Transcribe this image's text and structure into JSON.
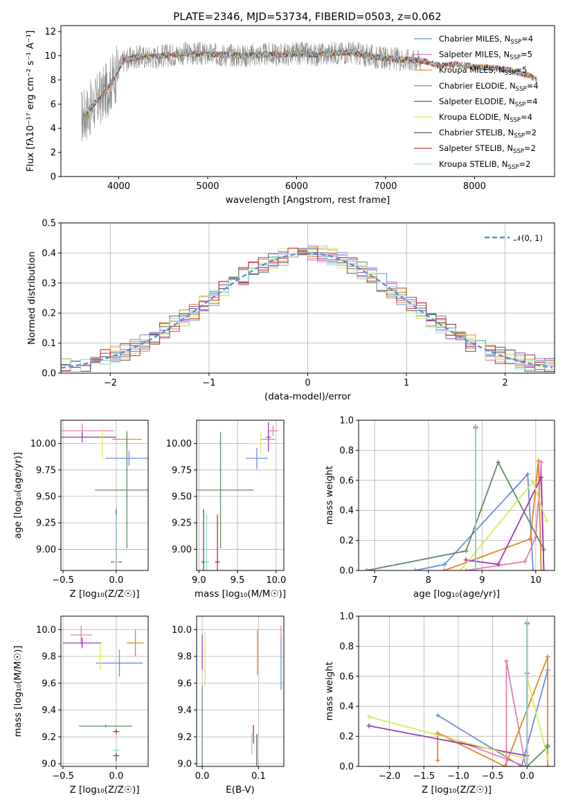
{
  "figure_title": "PLATE=2346, MJD=53734, FIBERID=0503, z=0.062",
  "colors": {
    "Chabrier MILES": "#6a8fd6",
    "Salpeter MILES": "#e07fb0",
    "Kroupa MILES": "#e5832a",
    "Chabrier ELODIE": "#5e8b63",
    "Salpeter ELODIE": "#9a3ab5",
    "Kroupa ELODIE": "#d4ec5a",
    "Chabrier STELIB": "#555555",
    "Salpeter STELIB": "#c0282b",
    "Kroupa STELIB": "#8fd8da",
    "data": "#8a8a8a",
    "gaussian": "#5b8fd0"
  },
  "chart_data": [
    {
      "id": "spectrum",
      "type": "line",
      "title": "PLATE=2346, MJD=53734, FIBERID=0503, z=0.062",
      "xlabel": "wavelength [Angstrom, rest frame]",
      "ylabel": "Flux [fλ10⁻¹⁷ erg cm⁻² s⁻¹ A⁻¹]",
      "xlim": [
        3350,
        8900
      ],
      "ylim": [
        0,
        12.5
      ],
      "xticks": [
        4000,
        5000,
        6000,
        7000,
        8000
      ],
      "yticks": [
        0,
        2,
        4,
        6,
        8,
        10,
        12
      ],
      "legend_position": "upper-right",
      "legend": [
        {
          "name": "Chabrier MILES",
          "label": "Chabrier MILES, N",
          "sub": "SSP",
          "suffix": "=4"
        },
        {
          "name": "Salpeter MILES",
          "label": "Salpeter MILES, N",
          "sub": "SSP",
          "suffix": "=5"
        },
        {
          "name": "Kroupa MILES",
          "label": "Kroupa MILES, N",
          "sub": "SSP",
          "suffix": "=5"
        },
        {
          "name": "Chabrier ELODIE",
          "label": "Chabrier ELODIE, N",
          "sub": "SSP",
          "suffix": "=4"
        },
        {
          "name": "Salpeter ELODIE",
          "label": "Salpeter ELODIE, N",
          "sub": "SSP",
          "suffix": "=4"
        },
        {
          "name": "Kroupa ELODIE",
          "label": "Kroupa ELODIE, N",
          "sub": "SSP",
          "suffix": "=4"
        },
        {
          "name": "Chabrier STELIB",
          "label": "Chabrier STELIB, N",
          "sub": "SSP",
          "suffix": "=2"
        },
        {
          "name": "Salpeter STELIB",
          "label": "Salpeter STELIB, N",
          "sub": "SSP",
          "suffix": "=2"
        },
        {
          "name": "Kroupa STELIB",
          "label": "Kroupa STELIB, N",
          "sub": "SSP",
          "suffix": "=2"
        }
      ],
      "continuum": [
        [
          3600,
          5.0
        ],
        [
          3700,
          5.8
        ],
        [
          3850,
          7.0
        ],
        [
          3950,
          8.2
        ],
        [
          4050,
          9.6
        ],
        [
          4200,
          9.9
        ],
        [
          4400,
          9.9
        ],
        [
          4600,
          10.1
        ],
        [
          4800,
          10.2
        ],
        [
          5000,
          10.1
        ],
        [
          5200,
          10.1
        ],
        [
          5400,
          10.0
        ],
        [
          5600,
          10.1
        ],
        [
          5800,
          10.1
        ],
        [
          6000,
          10.2
        ],
        [
          6200,
          10.1
        ],
        [
          6400,
          10.2
        ],
        [
          6600,
          10.3
        ],
        [
          6800,
          10.0
        ],
        [
          7000,
          9.8
        ],
        [
          7200,
          9.7
        ],
        [
          7400,
          9.6
        ],
        [
          7600,
          9.2
        ],
        [
          7800,
          9.3
        ],
        [
          8000,
          9.1
        ],
        [
          8200,
          9.0
        ],
        [
          8400,
          8.8
        ],
        [
          8600,
          8.4
        ],
        [
          8700,
          8.0
        ]
      ],
      "data_range": [
        3580,
        7400
      ],
      "model_range": [
        3600,
        8700
      ]
    },
    {
      "id": "residuals",
      "type": "histogram",
      "xlabel": "(data-model)/error",
      "ylabel": "Normed distribution",
      "xlim": [
        -2.5,
        2.5
      ],
      "ylim": [
        0,
        0.5
      ],
      "xticks": [
        -2,
        -1,
        0,
        1,
        2
      ],
      "yticks": [
        0.0,
        0.1,
        0.2,
        0.3,
        0.4,
        0.5
      ],
      "legend": "𝒩(0, 1)",
      "legend_position": "upper-right",
      "bin_width": 0.1
    },
    {
      "id": "z_age",
      "type": "errorbar",
      "xlabel": "Z [log₁₀(Z/Z☉)]",
      "ylabel": "age  [log₁₀(age/yr)]",
      "xlim": [
        -0.52,
        0.3
      ],
      "ylim": [
        8.8,
        10.22
      ],
      "xticks": [
        -0.5,
        0.0
      ],
      "yticks": [
        9.0,
        9.25,
        9.5,
        9.75,
        10.0
      ],
      "points": [
        {
          "series": "Chabrier MILES",
          "x": 0.12,
          "y": 9.86,
          "xerr": 0.22,
          "yerr": 0.07
        },
        {
          "series": "Salpeter MILES",
          "x": -0.32,
          "y": 10.12,
          "xerr": 0.3,
          "yerr": 0.07
        },
        {
          "series": "Kroupa MILES",
          "x": 0.1,
          "y": 10.04,
          "xerr": 0.14,
          "yerr": 0.08
        },
        {
          "series": "Chabrier ELODIE",
          "x": 0.1,
          "y": 9.56,
          "xerr": 0.3,
          "yerr": 0.55
        },
        {
          "series": "Salpeter ELODIE",
          "x": -0.32,
          "y": 10.06,
          "xerr": 0.32,
          "yerr": 0.05
        },
        {
          "series": "Kroupa ELODIE",
          "x": -0.13,
          "y": 10.0,
          "xerr": 0.1,
          "yerr": 0.15
        },
        {
          "series": "Chabrier STELIB",
          "x": 0.0,
          "y": 8.88,
          "xerr": 0.05,
          "yerr": 0.5
        },
        {
          "series": "Salpeter STELIB",
          "x": 0.0,
          "y": 8.88,
          "xerr": 0.04,
          "yerr": 0.45
        },
        {
          "series": "Kroupa STELIB",
          "x": 0.0,
          "y": 8.88,
          "xerr": 0.03,
          "yerr": 0.45
        }
      ]
    },
    {
      "id": "mass_age",
      "type": "errorbar",
      "xlabel": "mass [log₁₀(M/M☉)]",
      "ylabel": "",
      "xlim": [
        8.97,
        10.1
      ],
      "ylim": [
        8.8,
        10.22
      ],
      "xticks": [
        9.0,
        9.5,
        10.0
      ],
      "yticks": [
        9.0,
        9.25,
        9.5,
        9.75,
        10.0
      ],
      "points": [
        {
          "series": "Chabrier MILES",
          "x": 9.75,
          "y": 9.86,
          "xerr": 0.14,
          "yerr": 0.1
        },
        {
          "series": "Salpeter MILES",
          "x": 9.96,
          "y": 10.12,
          "xerr": 0.06,
          "yerr": 0.05
        },
        {
          "series": "Kroupa MILES",
          "x": 9.9,
          "y": 10.04,
          "xerr": 0.09,
          "yerr": 0.08
        },
        {
          "series": "Chabrier ELODIE",
          "x": 9.28,
          "y": 9.56,
          "xerr": 0.43,
          "yerr": 0.55
        },
        {
          "series": "Salpeter ELODIE",
          "x": 9.9,
          "y": 10.06,
          "xerr": 0.03,
          "yerr": 0.14
        },
        {
          "series": "Kroupa ELODIE",
          "x": 9.8,
          "y": 10.0,
          "xerr": 0.15,
          "yerr": 0.1
        },
        {
          "series": "Chabrier STELIB",
          "x": 9.06,
          "y": 8.88,
          "xerr": 0.03,
          "yerr": 0.5
        },
        {
          "series": "Salpeter STELIB",
          "x": 9.24,
          "y": 8.88,
          "xerr": 0.03,
          "yerr": 0.45
        },
        {
          "series": "Kroupa STELIB",
          "x": 9.1,
          "y": 8.88,
          "xerr": 0.03,
          "yerr": 0.45
        }
      ]
    },
    {
      "id": "age_weight",
      "type": "line",
      "xlabel": "age  [log₁₀(age/yr)]",
      "ylabel": "mass weight",
      "xlim": [
        6.7,
        10.35
      ],
      "ylim": [
        0,
        1.0
      ],
      "xticks": [
        7,
        8,
        9,
        10
      ],
      "yticks": [
        0.0,
        0.2,
        0.4,
        0.6,
        0.8,
        1.0
      ],
      "series": [
        {
          "name": "Chabrier MILES",
          "points": [
            [
              7.75,
              0.0
            ],
            [
              8.3,
              0.04
            ],
            [
              9.85,
              0.64
            ],
            [
              9.95,
              0.0
            ]
          ]
        },
        {
          "name": "Salpeter MILES",
          "points": [
            [
              8.7,
              0.0
            ],
            [
              9.8,
              0.06
            ],
            [
              10.0,
              0.22
            ],
            [
              10.1,
              0.72
            ],
            [
              10.15,
              0.0
            ]
          ]
        },
        {
          "name": "Kroupa MILES",
          "points": [
            [
              8.3,
              0.0
            ],
            [
              9.9,
              0.21
            ],
            [
              10.05,
              0.73
            ],
            [
              10.1,
              0.0
            ]
          ]
        },
        {
          "name": "Chabrier ELODIE",
          "points": [
            [
              6.85,
              0.0
            ],
            [
              8.7,
              0.13
            ],
            [
              9.3,
              0.72
            ],
            [
              10.15,
              0.14
            ]
          ]
        },
        {
          "name": "Salpeter ELODIE",
          "points": [
            [
              8.7,
              0.07
            ],
            [
              9.3,
              0.04
            ],
            [
              10.1,
              0.62
            ],
            [
              10.15,
              0.0
            ]
          ]
        },
        {
          "name": "Kroupa ELODIE",
          "points": [
            [
              8.6,
              0.0
            ],
            [
              9.95,
              0.59
            ],
            [
              10.2,
              0.33
            ]
          ]
        },
        {
          "name": "Chabrier STELIB",
          "points": [
            [
              8.88,
              0.0
            ],
            [
              8.88,
              0.96
            ]
          ]
        },
        {
          "name": "Salpeter STELIB",
          "points": [
            [
              8.88,
              0.0
            ],
            [
              8.88,
              0.95
            ]
          ]
        },
        {
          "name": "Kroupa STELIB",
          "points": [
            [
              8.88,
              0.0
            ],
            [
              8.88,
              0.96
            ]
          ]
        }
      ]
    },
    {
      "id": "z_mass",
      "type": "errorbar",
      "xlabel": "Z [log₁₀(Z/Z☉)]",
      "ylabel": "mass [log₁₀(M/M☉)]",
      "xlim": [
        -0.52,
        0.3
      ],
      "ylim": [
        8.98,
        10.1
      ],
      "xticks": [
        -0.5,
        0.0
      ],
      "yticks": [
        9.0,
        9.2,
        9.4,
        9.6,
        9.8,
        10.0
      ],
      "points": [
        {
          "series": "Chabrier MILES",
          "x": 0.03,
          "y": 9.75,
          "xerr": 0.22,
          "yerr": 0.1
        },
        {
          "series": "Salpeter MILES",
          "x": -0.33,
          "y": 9.96,
          "xerr": 0.1,
          "yerr": 0.07
        },
        {
          "series": "Kroupa MILES",
          "x": 0.18,
          "y": 9.9,
          "xerr": 0.08,
          "yerr": 0.1
        },
        {
          "series": "Chabrier ELODIE",
          "x": -0.1,
          "y": 9.28,
          "xerr": 0.25,
          "yerr": 0.01
        },
        {
          "series": "Salpeter ELODIE",
          "x": -0.32,
          "y": 9.9,
          "xerr": 0.18,
          "yerr": 0.04
        },
        {
          "series": "Kroupa ELODIE",
          "x": -0.15,
          "y": 9.8,
          "xerr": 0.05,
          "yerr": 0.1
        },
        {
          "series": "Chabrier STELIB",
          "x": 0.0,
          "y": 9.06,
          "xerr": 0.03,
          "yerr": 0.04
        },
        {
          "series": "Salpeter STELIB",
          "x": 0.0,
          "y": 9.24,
          "xerr": 0.03,
          "yerr": 0.02
        },
        {
          "series": "Kroupa STELIB",
          "x": 0.0,
          "y": 9.1,
          "xerr": 0.03,
          "yerr": 0.02
        }
      ]
    },
    {
      "id": "ebv_mass",
      "type": "errorbar",
      "xlabel": "E(B-V)",
      "ylabel": "",
      "xlim": [
        -0.01,
        0.145
      ],
      "ylim": [
        8.98,
        10.1
      ],
      "xticks": [
        0.0,
        0.1
      ],
      "yticks": [
        9.0,
        9.2,
        9.4,
        9.6,
        9.8,
        10.0
      ],
      "points": [
        {
          "series": "Chabrier MILES",
          "x": 0.14,
          "y": 9.75,
          "xerr": 0.0,
          "yerr": 0.2
        },
        {
          "series": "Salpeter MILES",
          "x": 0.14,
          "y": 9.96,
          "xerr": 0.0,
          "yerr": 0.07
        },
        {
          "series": "Kroupa MILES",
          "x": 0.098,
          "y": 9.83,
          "xerr": 0.0,
          "yerr": 0.17
        },
        {
          "series": "Chabrier ELODIE",
          "x": 0.0,
          "y": 9.28,
          "xerr": 0.0,
          "yerr": 0.3
        },
        {
          "series": "Salpeter ELODIE",
          "x": 0.0,
          "y": 9.83,
          "xerr": 0.0,
          "yerr": 0.13
        },
        {
          "series": "Kroupa ELODIE",
          "x": 0.005,
          "y": 9.78,
          "xerr": 0.0,
          "yerr": 0.2
        },
        {
          "series": "Chabrier STELIB",
          "x": 0.097,
          "y": 9.1,
          "xerr": 0.0,
          "yerr": 0.12
        },
        {
          "series": "Salpeter STELIB",
          "x": 0.091,
          "y": 9.22,
          "xerr": 0.0,
          "yerr": 0.07
        },
        {
          "series": "Kroupa STELIB",
          "x": 0.088,
          "y": 9.15,
          "xerr": 0.0,
          "yerr": 0.08
        }
      ]
    },
    {
      "id": "z_weight",
      "type": "line",
      "xlabel": "Z [log₁₀(Z/Z☉)]",
      "ylabel": "mass weight",
      "xlim": [
        -2.45,
        0.4
      ],
      "ylim": [
        0,
        1.0
      ],
      "xticks": [
        -2.0,
        -1.5,
        -1.0,
        -0.5,
        0.0
      ],
      "yticks": [
        0.0,
        0.2,
        0.4,
        0.6,
        0.8,
        1.0
      ],
      "series": [
        {
          "name": "Chabrier MILES",
          "points": [
            [
              -1.3,
              0.34
            ],
            [
              -0.08,
              0.0
            ],
            [
              0.3,
              0.64
            ]
          ]
        },
        {
          "name": "Salpeter MILES",
          "points": [
            [
              -1.3,
              0.22
            ],
            [
              -0.02,
              0.0
            ],
            [
              -0.3,
              0.7
            ],
            [
              -0.3,
              0.0
            ]
          ]
        },
        {
          "name": "Kroupa MILES",
          "points": [
            [
              -1.3,
              0.04
            ],
            [
              -1.3,
              0.22
            ],
            [
              -0.32,
              0.0
            ],
            [
              0.3,
              0.73
            ],
            [
              0.3,
              0.0
            ]
          ]
        },
        {
          "name": "Chabrier ELODIE",
          "points": [
            [
              0.0,
              0.0
            ],
            [
              0.3,
              0.13
            ],
            [
              0.3,
              0.14
            ]
          ]
        },
        {
          "name": "Salpeter ELODIE",
          "points": [
            [
              -2.3,
              0.27
            ],
            [
              0.0,
              0.07
            ],
            [
              0.0,
              0.62
            ]
          ]
        },
        {
          "name": "Kroupa ELODIE",
          "points": [
            [
              -2.3,
              0.33
            ],
            [
              0.0,
              0.05
            ],
            [
              0.0,
              0.59
            ],
            [
              0.3,
              0.06
            ]
          ]
        },
        {
          "name": "Chabrier STELIB",
          "points": [
            [
              0.0,
              0.0
            ],
            [
              0.0,
              0.96
            ]
          ]
        },
        {
          "name": "Salpeter STELIB",
          "points": [
            [
              0.0,
              0.0
            ],
            [
              0.0,
              0.95
            ]
          ]
        },
        {
          "name": "Kroupa STELIB",
          "points": [
            [
              0.0,
              0.0
            ],
            [
              0.0,
              0.96
            ]
          ]
        }
      ]
    }
  ]
}
